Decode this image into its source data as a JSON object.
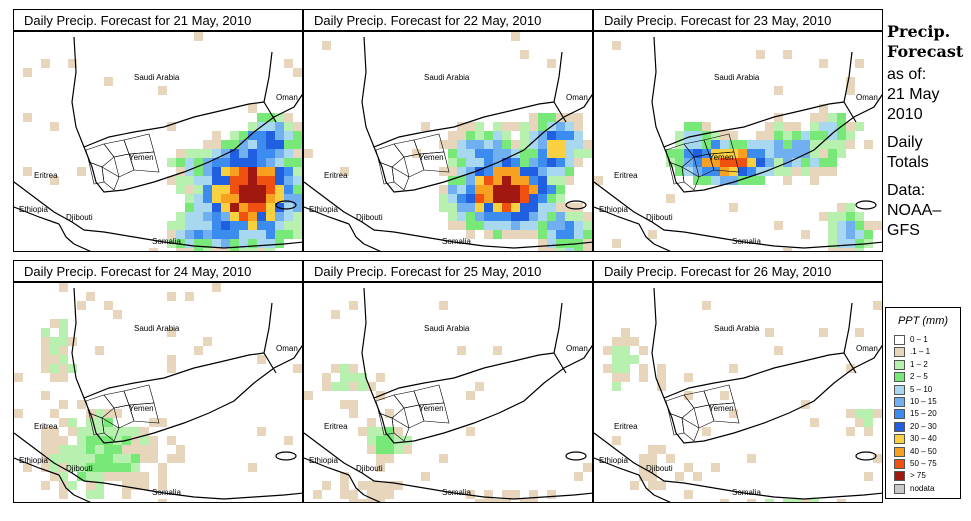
{
  "panels": [
    {
      "title": "Daily Precip. Forecast for  21 May, 2010"
    },
    {
      "title": "Daily Precip. Forecast for  22 May, 2010"
    },
    {
      "title": "Daily Precip. Forecast for  23 May, 2010"
    },
    {
      "title": "Daily Precip. Forecast for  24 May, 2010"
    },
    {
      "title": "Daily Precip. Forecast for  25 May, 2010"
    },
    {
      "title": "Daily Precip. Forecast for  26 May, 2010"
    }
  ],
  "map_labels": {
    "saudi": "Saudi Arabia",
    "oman": "Oman",
    "yemen": "Yemen",
    "eritrea": "Eritrea",
    "ethiopia": "Ethiopia",
    "djibouti": "Djibouti",
    "somalia": "Somalia"
  },
  "side": {
    "title_line1": "Precip.",
    "title_line2": "Forecast",
    "as_of": "as of:",
    "date_line1": "21 May",
    "date_line2": "2010",
    "totals_line1": "Daily",
    "totals_line2": "Totals",
    "data_line1": "Data:",
    "data_line2": "NOAA–",
    "data_line3": "GFS"
  },
  "legend": {
    "title": "PPT (mm)",
    "items": [
      {
        "label": "0 – 1",
        "color": "#ffffff"
      },
      {
        "label": ".1 – 1",
        "color": "#e8d6bc"
      },
      {
        "label": "1 – 2",
        "color": "#b8f0b0"
      },
      {
        "label": "2 – 5",
        "color": "#78e878"
      },
      {
        "label": "5 – 10",
        "color": "#a8d8f0"
      },
      {
        "label": "10 – 15",
        "color": "#70b0f0"
      },
      {
        "label": "15 – 20",
        "color": "#3c8cf0"
      },
      {
        "label": "20 – 30",
        "color": "#2060e0"
      },
      {
        "label": "30 – 40",
        "color": "#f8d040"
      },
      {
        "label": "40 – 50",
        "color": "#f8a020"
      },
      {
        "label": "50 – 75",
        "color": "#f05010"
      },
      {
        "label": "> 75",
        "color": "#a01810"
      },
      {
        "label": "nodata",
        "color": "#c8c8c8"
      }
    ]
  }
}
